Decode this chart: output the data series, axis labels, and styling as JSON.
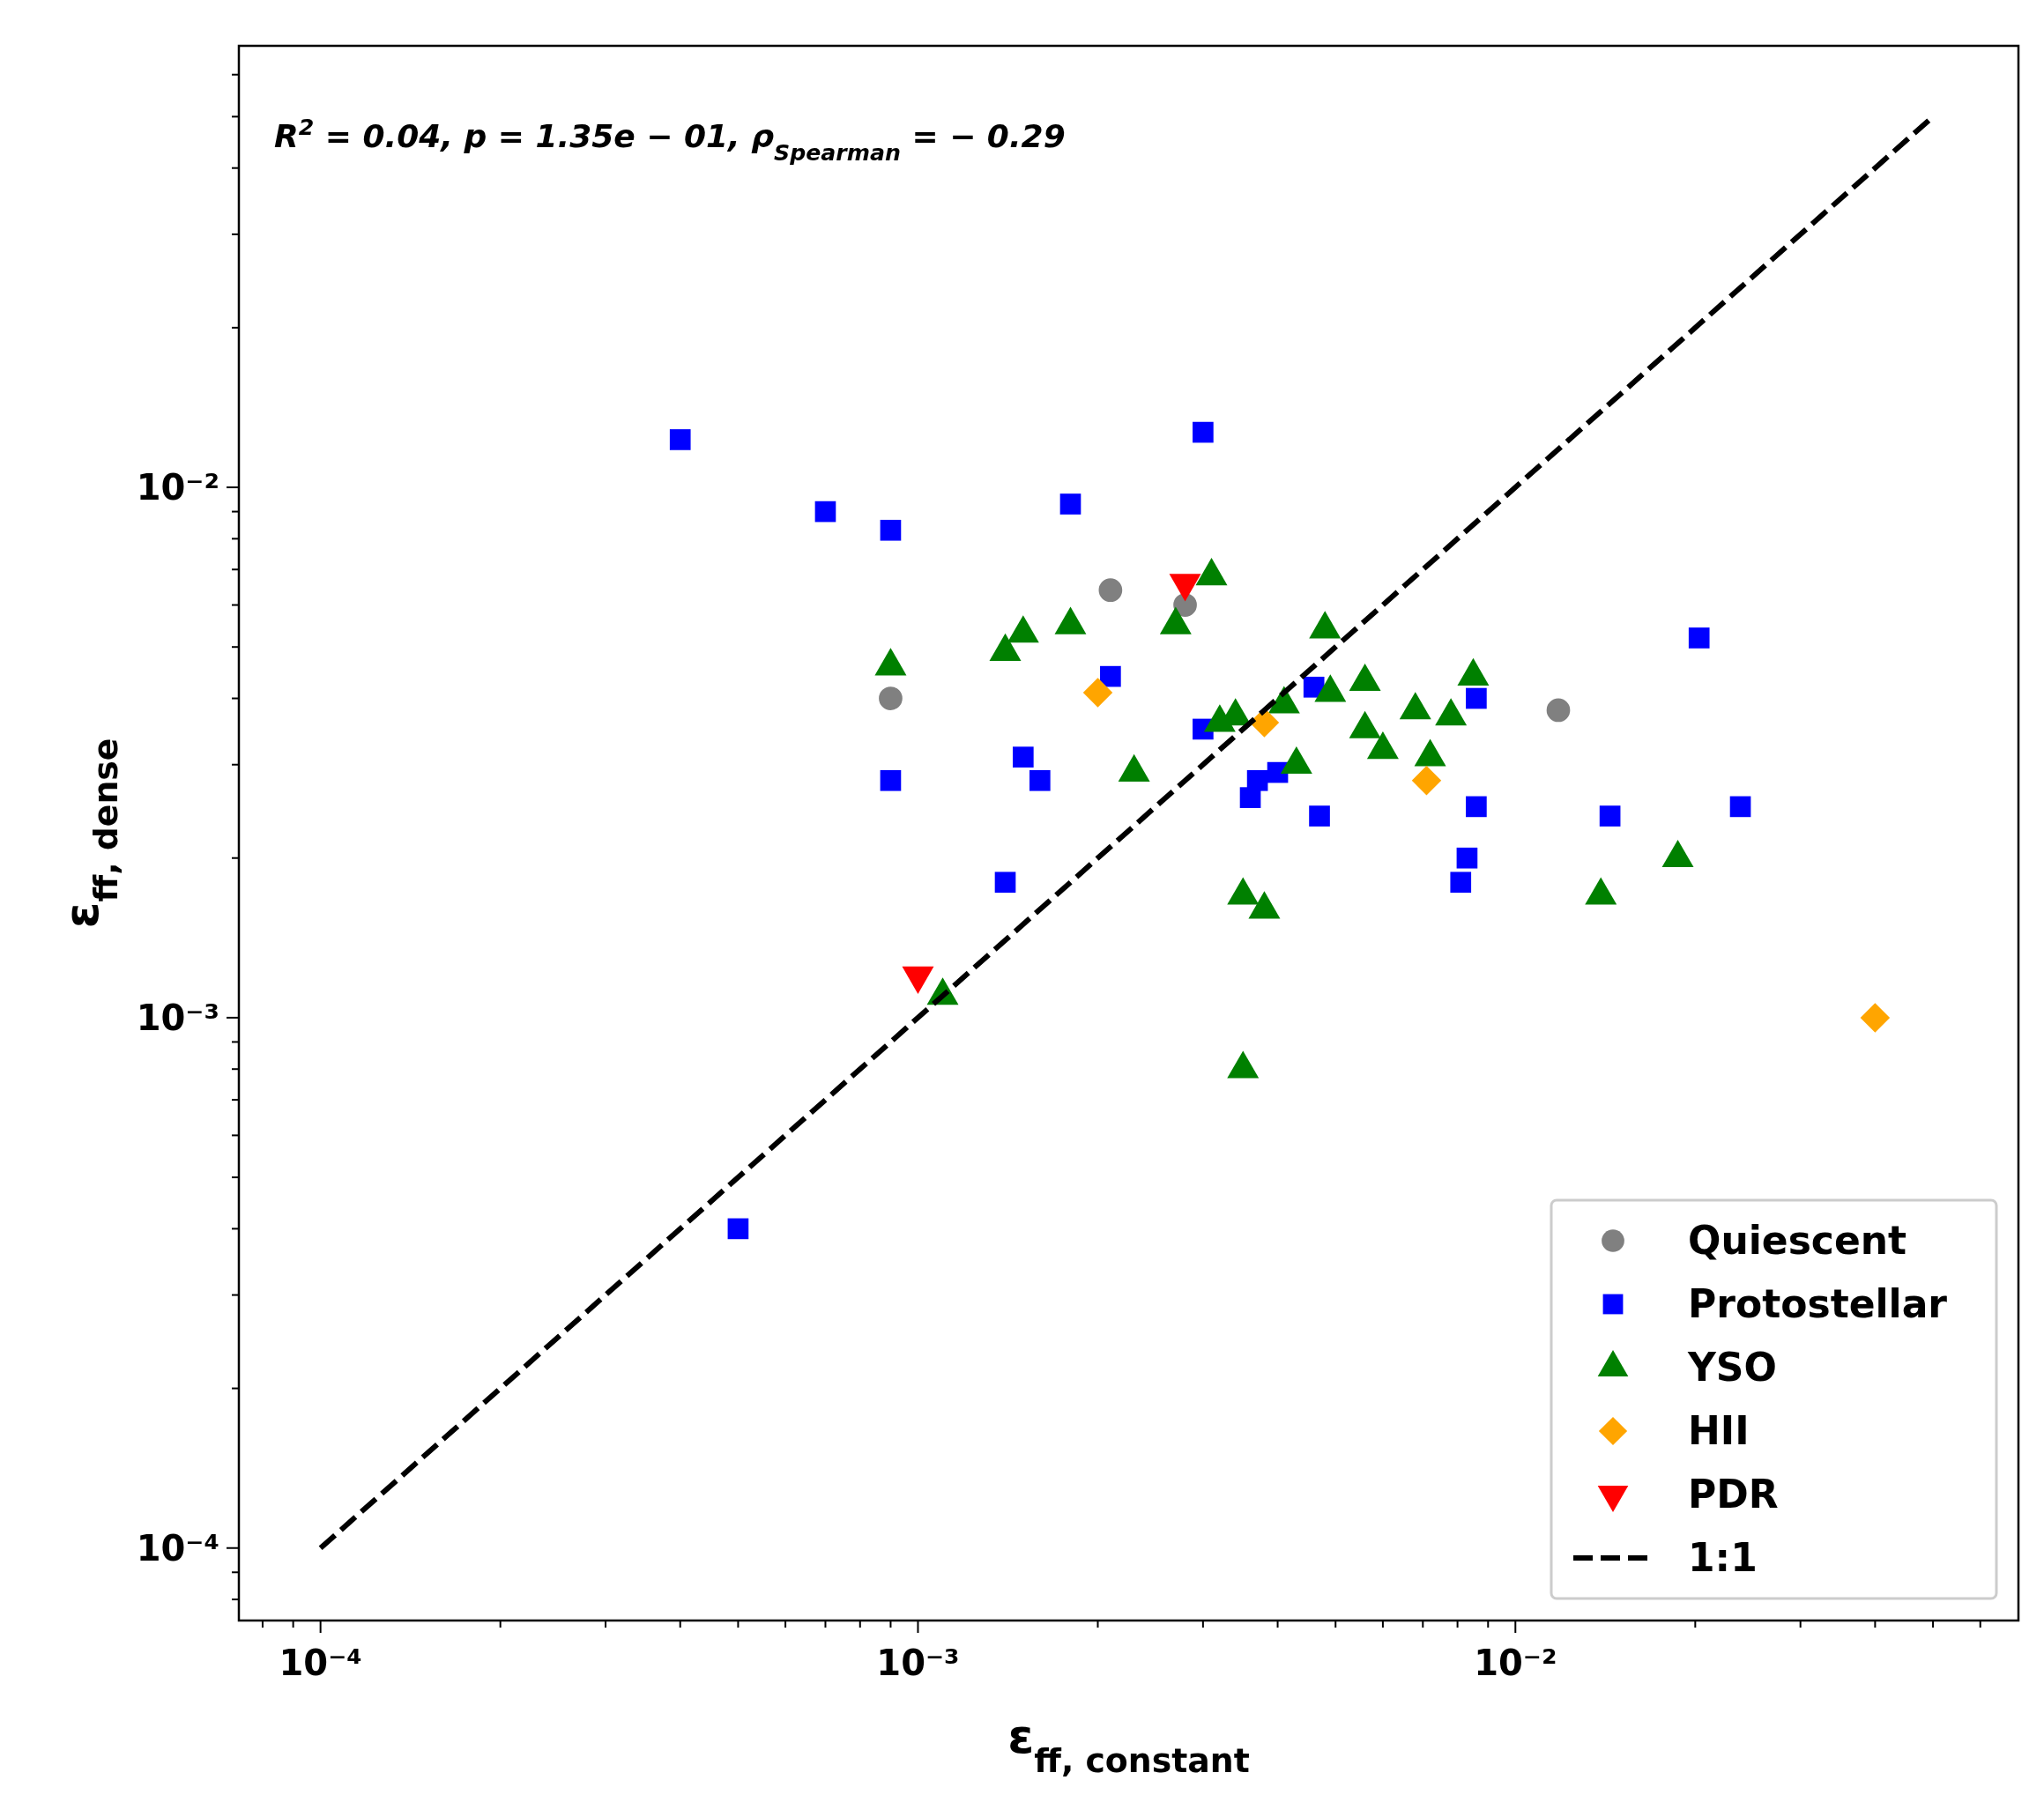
{
  "chart_data": {
    "type": "scatter",
    "xlabel": "ε$_{ff, constant}$",
    "ylabel": "ε$_{ff, dense}$",
    "log": "xy",
    "grid": false,
    "legend": "bottom right",
    "xlim": [
      7.3e-05,
      0.0695
    ],
    "ylim": [
      7.3e-05,
      0.068
    ],
    "xticks": [
      {
        "value": 8e-05,
        "label": null
      },
      {
        "value": 9e-05,
        "label": null
      },
      {
        "value": 0.0001,
        "label": "10⁻⁴"
      },
      {
        "value": 0.0002,
        "label": null
      },
      {
        "value": 0.0003,
        "label": null
      },
      {
        "value": 0.0004,
        "label": null
      },
      {
        "value": 0.0005,
        "label": null
      },
      {
        "value": 0.0006,
        "label": null
      },
      {
        "value": 0.0007,
        "label": null
      },
      {
        "value": 0.0008,
        "label": null
      },
      {
        "value": 0.0009,
        "label": null
      },
      {
        "value": 0.001,
        "label": "10⁻³"
      },
      {
        "value": 0.002,
        "label": null
      },
      {
        "value": 0.003,
        "label": null
      },
      {
        "value": 0.004,
        "label": null
      },
      {
        "value": 0.005,
        "label": null
      },
      {
        "value": 0.006,
        "label": null
      },
      {
        "value": 0.007,
        "label": null
      },
      {
        "value": 0.008,
        "label": null
      },
      {
        "value": 0.009,
        "label": null
      },
      {
        "value": 0.01,
        "label": "10⁻²"
      },
      {
        "value": 0.02,
        "label": null
      },
      {
        "value": 0.03,
        "label": null
      },
      {
        "value": 0.04,
        "label": null
      },
      {
        "value": 0.05,
        "label": null
      },
      {
        "value": 0.06,
        "label": null
      }
    ],
    "yticks": [
      {
        "value": 8e-05,
        "label": null
      },
      {
        "value": 9e-05,
        "label": null
      },
      {
        "value": 0.0001,
        "label": "10⁻⁴"
      },
      {
        "value": 0.0002,
        "label": null
      },
      {
        "value": 0.0003,
        "label": null
      },
      {
        "value": 0.0004,
        "label": null
      },
      {
        "value": 0.0005,
        "label": null
      },
      {
        "value": 0.0006,
        "label": null
      },
      {
        "value": 0.0007,
        "label": null
      },
      {
        "value": 0.0008,
        "label": null
      },
      {
        "value": 0.0009,
        "label": null
      },
      {
        "value": 0.001,
        "label": "10⁻³"
      },
      {
        "value": 0.002,
        "label": null
      },
      {
        "value": 0.003,
        "label": null
      },
      {
        "value": 0.004,
        "label": null
      },
      {
        "value": 0.005,
        "label": null
      },
      {
        "value": 0.006,
        "label": null
      },
      {
        "value": 0.007,
        "label": null
      },
      {
        "value": 0.008,
        "label": null
      },
      {
        "value": 0.009,
        "label": null
      },
      {
        "value": 0.01,
        "label": "10⁻²"
      },
      {
        "value": 0.02,
        "label": null
      },
      {
        "value": 0.03,
        "label": null
      },
      {
        "value": 0.04,
        "label": null
      },
      {
        "value": 0.05,
        "label": null
      },
      {
        "value": 0.06,
        "label": null
      }
    ],
    "annotations": [
      "R$^{2}$ = 0.04, p = 1.35e − 01, ρ$_{Spearman}$ = − 0.29"
    ],
    "series": [
      {
        "name": "Quiescent",
        "color": "#808080",
        "marker": "circle",
        "x": [
          0.0009,
          0.0021,
          0.0028,
          0.0118
        ],
        "values": [
          0.004,
          0.0064,
          0.006,
          0.0038
        ]
      },
      {
        "name": "Protostellar",
        "color": "#0000ff",
        "marker": "square",
        "x": [
          0.0004,
          0.0007,
          0.0009,
          0.0018,
          0.003,
          0.0021,
          0.0009,
          0.0015,
          0.0016,
          0.0014,
          0.003,
          0.0036,
          0.0037,
          0.004,
          0.0046,
          0.0047,
          0.0086,
          0.0086,
          0.0083,
          0.0081,
          0.0144,
          0.0203,
          0.0238,
          0.0005
        ],
        "values": [
          0.0123,
          0.009,
          0.0083,
          0.0093,
          0.0127,
          0.0044,
          0.0028,
          0.0031,
          0.0028,
          0.0018,
          0.0035,
          0.0026,
          0.0028,
          0.0029,
          0.0042,
          0.0024,
          0.004,
          0.0025,
          0.002,
          0.0018,
          0.0024,
          0.0052,
          0.0025,
          0.0004
        ]
      },
      {
        "name": "YSO",
        "color": "#008000",
        "marker": "triangle",
        "x": [
          0.0009,
          0.0011,
          0.0014,
          0.0015,
          0.0018,
          0.0023,
          0.0027,
          0.0031,
          0.0032,
          0.0034,
          0.0035,
          0.0038,
          0.0035,
          0.0041,
          0.0043,
          0.0049,
          0.0048,
          0.0056,
          0.0056,
          0.006,
          0.0068,
          0.0072,
          0.0078,
          0.0085,
          0.0139,
          0.0187
        ],
        "values": [
          0.0046,
          0.0011,
          0.0049,
          0.0053,
          0.0055,
          0.0029,
          0.0055,
          0.0068,
          0.0036,
          0.0037,
          0.0017,
          0.0016,
          0.0008,
          0.0039,
          0.003,
          0.0041,
          0.0054,
          0.0043,
          0.0035,
          0.0032,
          0.0038,
          0.0031,
          0.0037,
          0.0044,
          0.0017,
          0.002
        ]
      },
      {
        "name": "HII",
        "color": "#ffa500",
        "marker": "diamond",
        "x": [
          0.002,
          0.0038,
          0.0071,
          0.04
        ],
        "values": [
          0.0041,
          0.0036,
          0.0028,
          0.001
        ]
      },
      {
        "name": "PDR",
        "color": "#ff0000",
        "marker": "triangle_down",
        "x": [
          0.001,
          0.0028
        ],
        "values": [
          0.0012,
          0.0066
        ]
      },
      {
        "name": "1:1",
        "type": "line",
        "color": "#000000",
        "marker": "none",
        "line_style": "dashed",
        "x": [
          0.0001,
          0.05
        ],
        "values": [
          0.0001,
          0.05
        ]
      }
    ]
  }
}
